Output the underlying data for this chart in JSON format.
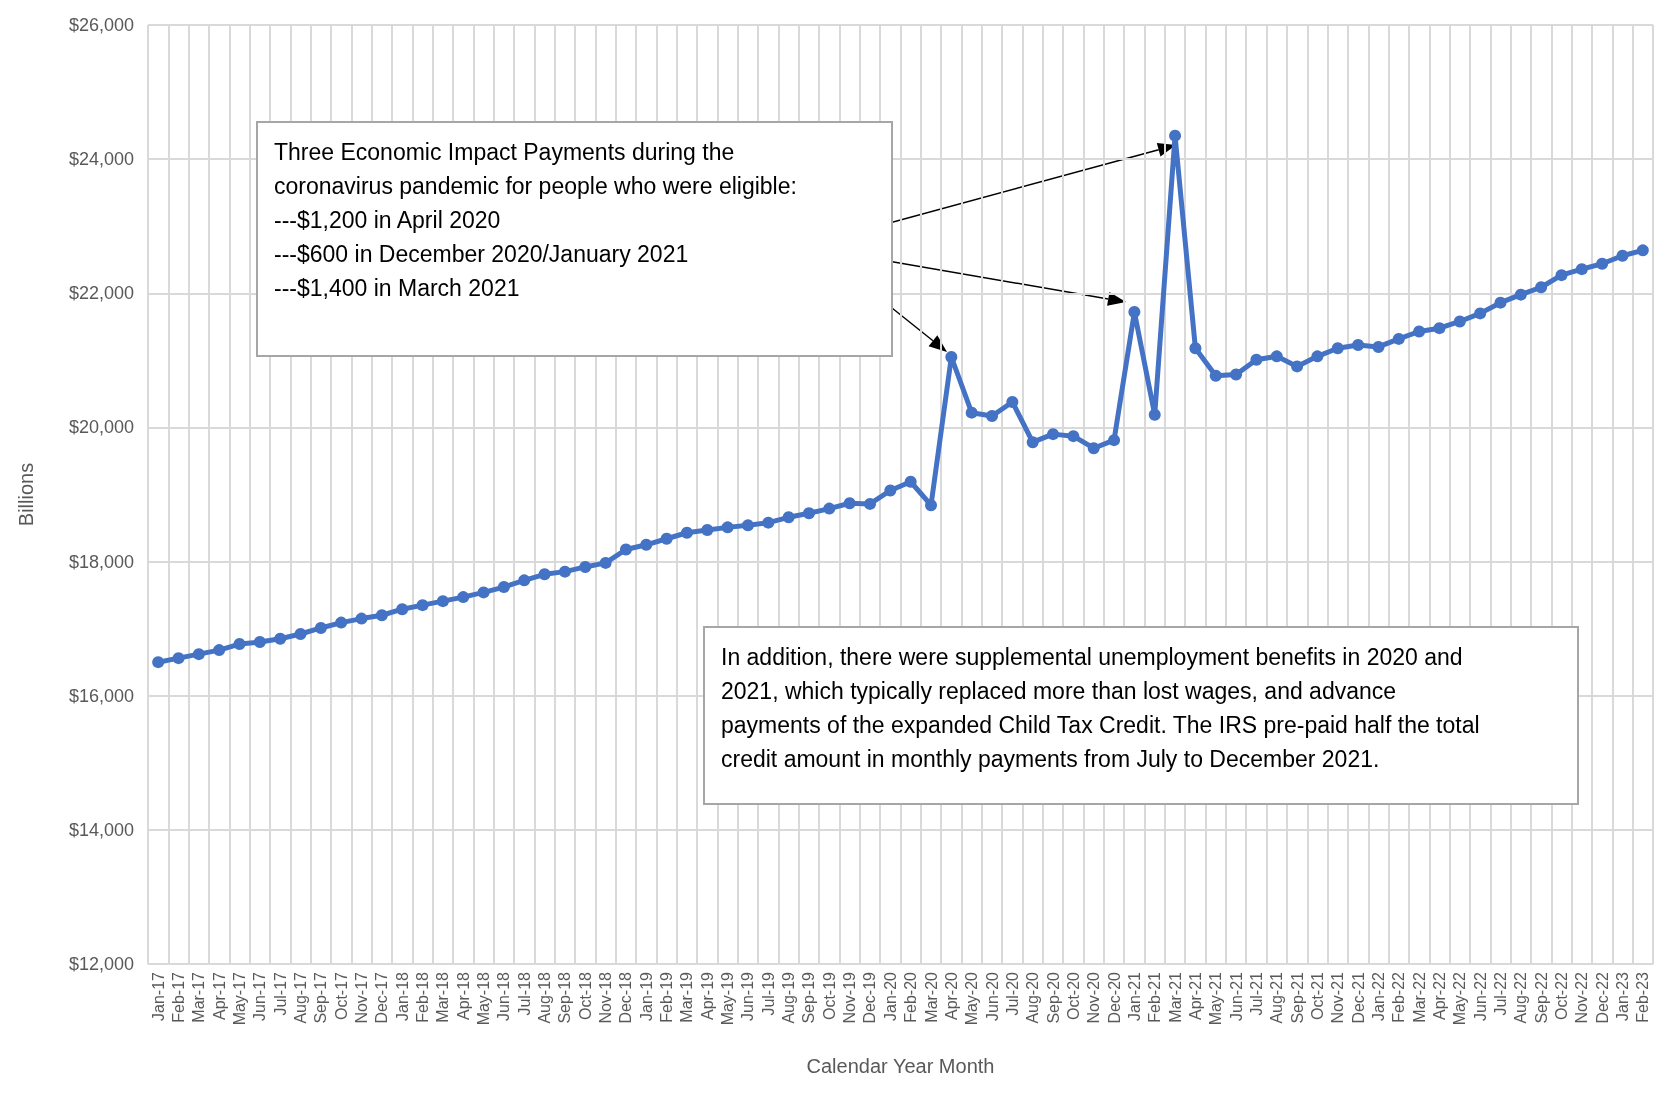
{
  "chart_data": {
    "type": "line",
    "xlabel": "Calendar Year Month",
    "ylabel": "Billions",
    "categories": [
      "Jan-17",
      "Feb-17",
      "Mar-17",
      "Apr-17",
      "May-17",
      "Jun-17",
      "Jul-17",
      "Aug-17",
      "Sep-17",
      "Oct-17",
      "Nov-17",
      "Dec-17",
      "Jan-18",
      "Feb-18",
      "Mar-18",
      "Apr-18",
      "May-18",
      "Jun-18",
      "Jul-18",
      "Aug-18",
      "Sep-18",
      "Oct-18",
      "Nov-18",
      "Dec-18",
      "Jan-19",
      "Feb-19",
      "Mar-19",
      "Apr-19",
      "May-19",
      "Jun-19",
      "Jul-19",
      "Aug-19",
      "Sep-19",
      "Oct-19",
      "Nov-19",
      "Dec-19",
      "Jan-20",
      "Feb-20",
      "Mar-20",
      "Apr-20",
      "May-20",
      "Jun-20",
      "Jul-20",
      "Aug-20",
      "Sep-20",
      "Oct-20",
      "Nov-20",
      "Dec-20",
      "Jan-21",
      "Feb-21",
      "Mar-21",
      "Apr-21",
      "May-21",
      "Jun-21",
      "Jul-21",
      "Aug-21",
      "Sep-21",
      "Oct-21",
      "Nov-21",
      "Dec-21",
      "Jan-22",
      "Feb-22",
      "Mar-22",
      "Apr-22",
      "May-22",
      "Jun-22",
      "Jul-22",
      "Aug-22",
      "Sep-22",
      "Oct-22",
      "Nov-22",
      "Dec-22",
      "Jan-23",
      "Feb-23"
    ],
    "series": [
      {
        "color": "#4472c4",
        "values": [
          16500,
          16560,
          16620,
          16680,
          16770,
          16800,
          16850,
          16920,
          17010,
          17090,
          17150,
          17200,
          17290,
          17350,
          17410,
          17470,
          17540,
          17620,
          17720,
          17810,
          17850,
          17920,
          17980,
          18180,
          18250,
          18340,
          18430,
          18470,
          18510,
          18540,
          18580,
          18660,
          18720,
          18790,
          18870,
          18860,
          19060,
          19190,
          18840,
          21050,
          20220,
          20170,
          20380,
          19780,
          19900,
          19870,
          19690,
          19810,
          21720,
          20190,
          24350,
          21180,
          20770,
          20790,
          21010,
          21060,
          20910,
          21060,
          21180,
          21230,
          21200,
          21320,
          21430,
          21480,
          21580,
          21700,
          21860,
          21980,
          22090,
          22270,
          22360,
          22440,
          22560,
          22640
        ]
      }
    ],
    "ylim": [
      12000,
      26000
    ],
    "yticks": [
      {
        "value": 12000,
        "label": "$12,000"
      },
      {
        "value": 14000,
        "label": "$14,000"
      },
      {
        "value": 16000,
        "label": "$16,000"
      },
      {
        "value": 18000,
        "label": "$18,000"
      },
      {
        "value": 20000,
        "label": "$20,000"
      },
      {
        "value": 22000,
        "label": "$22,000"
      },
      {
        "value": 24000,
        "label": "$24,000"
      },
      {
        "value": 26000,
        "label": "$26,000"
      }
    ],
    "grid": true,
    "marker": "circle",
    "line_style": "solid",
    "annotations": [
      "Three Economic Impact Payments during the\ncoronavirus pandemic for people who were eligible:\n---$1,200 in April 2020\n---$600 in December 2020/January 2021\n---$1,400 in March 2021",
      "In addition, there were supplemental unemployment benefits in 2020 and\n2021, which typically replaced more than lost wages, and advance\npayments of the expanded Child Tax Credit. The IRS pre-paid half the total\ncredit amount in monthly payments from July to December 2021."
    ]
  }
}
